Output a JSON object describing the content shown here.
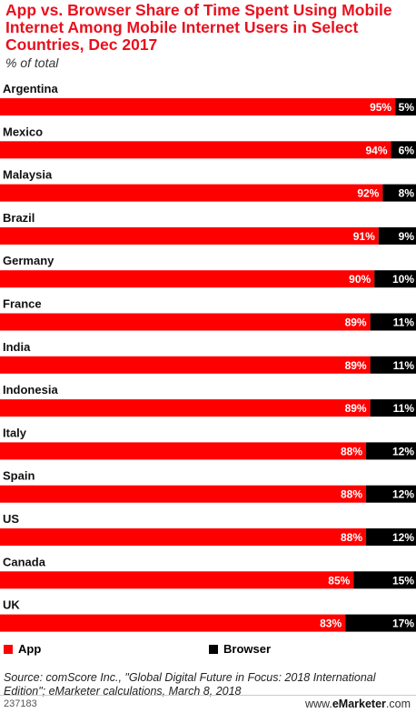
{
  "header": {
    "title": "App vs. Browser Share of Time Spent Using Mobile Internet Among Mobile Internet Users in Select Countries, Dec 2017",
    "subtitle": "% of total"
  },
  "colors": {
    "app": "#ff0000",
    "browser": "#000000",
    "title": "#e8111e"
  },
  "chart_data": {
    "type": "bar",
    "orientation": "horizontal",
    "stacked": true,
    "categories": [
      "Argentina",
      "Mexico",
      "Malaysia",
      "Brazil",
      "Germany",
      "France",
      "India",
      "Indonesia",
      "Italy",
      "Spain",
      "US",
      "Canada",
      "UK"
    ],
    "series": [
      {
        "name": "App",
        "values": [
          95,
          94,
          92,
          91,
          90,
          89,
          89,
          89,
          88,
          88,
          88,
          85,
          83
        ]
      },
      {
        "name": "Browser",
        "values": [
          5,
          6,
          8,
          9,
          10,
          11,
          11,
          11,
          12,
          12,
          12,
          15,
          17
        ]
      }
    ],
    "value_labels": {
      "App": [
        "95%",
        "94%",
        "92%",
        "91%",
        "90%",
        "89%",
        "89%",
        "89%",
        "88%",
        "88%",
        "88%",
        "85%",
        "83%"
      ],
      "Browser": [
        "5%",
        "6%",
        "8%",
        "9%",
        "10%",
        "11%",
        "11%",
        "11%",
        "12%",
        "12%",
        "12%",
        "15%",
        "17%"
      ]
    },
    "xlim": [
      0,
      100
    ],
    "grid": false,
    "legend": "bottom"
  },
  "legend": {
    "app_label": "App",
    "browser_label": "Browser"
  },
  "source": "Source: comScore Inc., \"Global Digital Future in Focus: 2018 International Edition\"; eMarketer calculations, March 8, 2018",
  "footer": {
    "chart_id": "237183",
    "brand_prefix": "www.",
    "brand_name": "eMarketer",
    "brand_suffix": ".com"
  }
}
